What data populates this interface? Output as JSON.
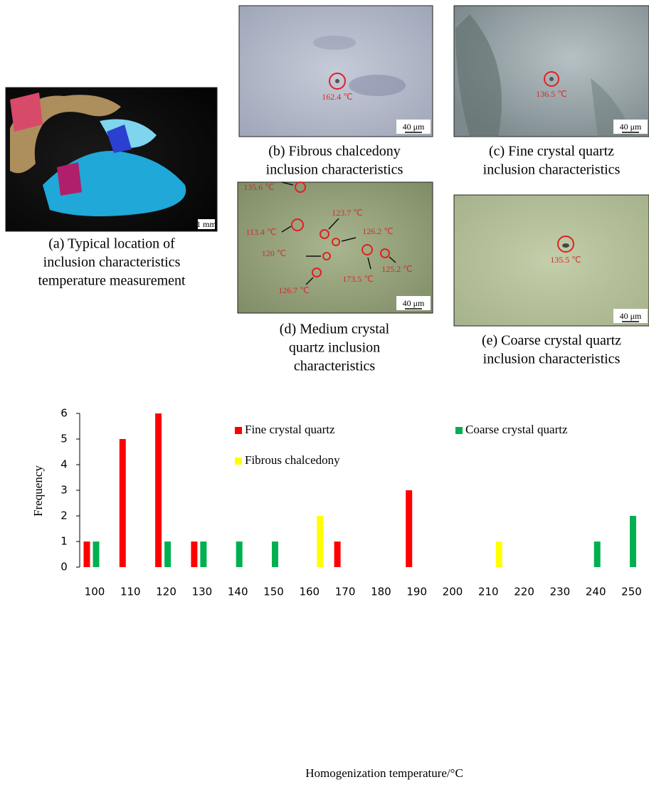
{
  "panels": [
    {
      "caption": [
        "(a) Typical location of",
        "inclusion characteristics",
        "temperature measurement"
      ],
      "scale": "1 mm",
      "labels": []
    },
    {
      "caption": [
        "(b) Fibrous chalcedony",
        "inclusion characteristics"
      ],
      "scale": "40 μm",
      "labels": [
        "162.4 ℃"
      ]
    },
    {
      "caption": [
        "(c) Fine crystal quartz",
        "inclusion characteristics"
      ],
      "scale": "40 μm",
      "labels": [
        "136.5 ℃"
      ]
    },
    {
      "caption": [
        "(d) Medium crystal",
        "quartz inclusion",
        "characteristics"
      ],
      "scale": "40 μm",
      "labels": [
        "135.6 ℃",
        "113.4 ℃",
        "123.7 ℃",
        "126.2 ℃",
        "120 ℃",
        "173.5 ℃",
        "125.2 ℃",
        "126.7 ℃"
      ]
    },
    {
      "caption": [
        "(e) Coarse crystal quartz",
        "inclusion characteristics"
      ],
      "scale": "40 μm",
      "labels": [
        "135.5 ℃"
      ]
    }
  ],
  "chart_data": {
    "type": "bar",
    "x_label": "Homogenization temperature/°C",
    "y_label": "Frequency",
    "categories": [
      "100",
      "110",
      "120",
      "130",
      "140",
      "150",
      "160",
      "170",
      "180",
      "190",
      "200",
      "210",
      "220",
      "230",
      "240",
      "250"
    ],
    "series": [
      {
        "name": "Fine crystal quartz",
        "color": "#ff0000",
        "values": [
          1,
          5,
          6,
          1,
          0,
          0,
          0,
          1,
          0,
          3,
          0,
          0,
          0,
          0,
          0,
          0
        ]
      },
      {
        "name": "Coarse crystal quartz",
        "color": "#00b050",
        "values": [
          1,
          0,
          1,
          1,
          1,
          1,
          0,
          0,
          0,
          0,
          0,
          0,
          0,
          0,
          1,
          2
        ]
      },
      {
        "name": "Fibrous chalcedony",
        "color": "#ffff00",
        "values": [
          0,
          0,
          0,
          0,
          0,
          0,
          2,
          0,
          0,
          0,
          0,
          1,
          0,
          0,
          0,
          0
        ]
      }
    ],
    "ylim": [
      0,
      6
    ],
    "yticks": [
      0,
      1,
      2,
      3,
      4,
      5,
      6
    ],
    "grid": false
  }
}
